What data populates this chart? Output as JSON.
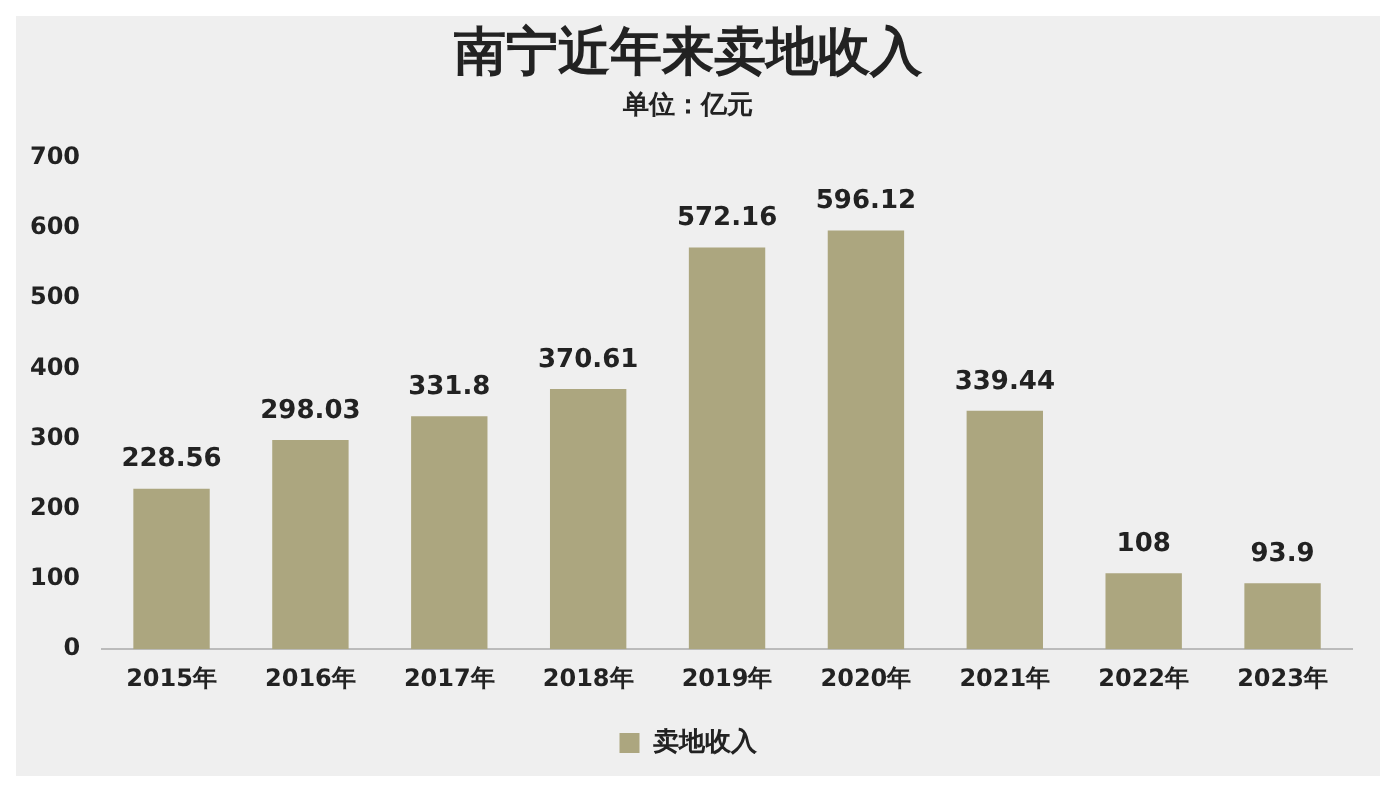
{
  "chart_data": {
    "type": "bar",
    "title": "南宁近年来卖地收入",
    "subtitle": "单位：亿元",
    "categories": [
      "2015年",
      "2016年",
      "2017年",
      "2018年",
      "2019年",
      "2020年",
      "2021年",
      "2022年",
      "2023年"
    ],
    "series": [
      {
        "name": "卖地收入",
        "color": "#aca67f",
        "values": [
          228.56,
          298.03,
          331.8,
          370.61,
          572.16,
          596.12,
          339.44,
          108,
          93.9
        ]
      }
    ],
    "ylim": [
      0,
      700
    ],
    "yticks": [
      0,
      100,
      200,
      300,
      400,
      500,
      600,
      700
    ],
    "grid": false,
    "legend": "bottom",
    "data_labels": true
  }
}
